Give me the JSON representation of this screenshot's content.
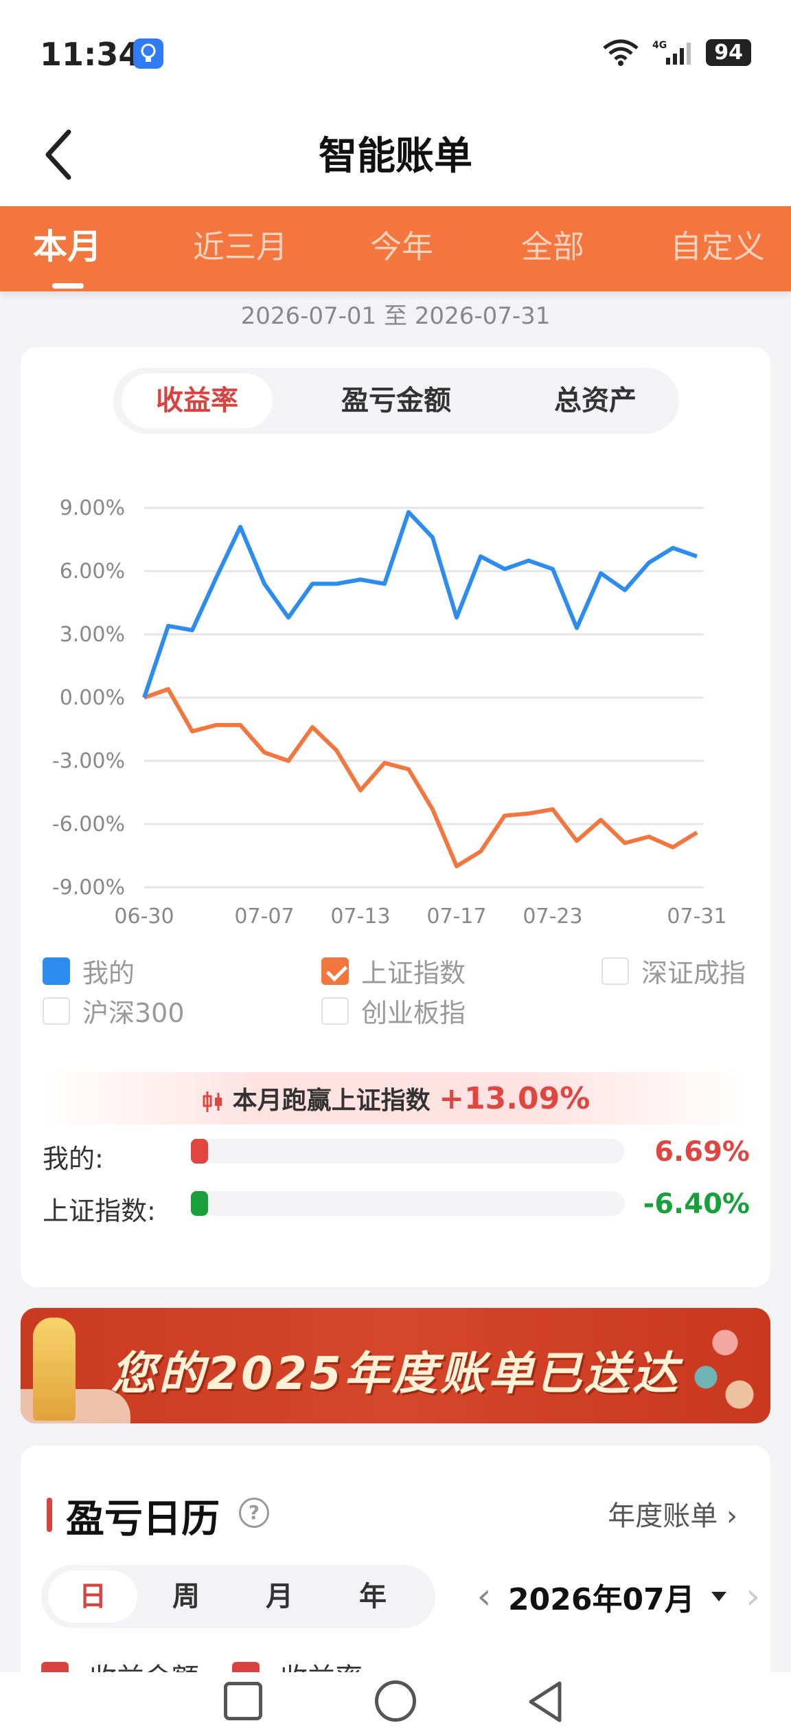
{
  "status": {
    "time": "11:34",
    "battery": "94",
    "network": "4G"
  },
  "header": {
    "title": "智能账单"
  },
  "tabs": [
    {
      "label": "本月",
      "active": true
    },
    {
      "label": "近三月",
      "active": false
    },
    {
      "label": "今年",
      "active": false
    },
    {
      "label": "全部",
      "active": false
    },
    {
      "label": "自定义",
      "active": false
    }
  ],
  "date_range": "2026-07-01 至 2026-07-31",
  "metric_tabs": [
    {
      "label": "收益率",
      "active": true
    },
    {
      "label": "盈亏金额",
      "active": false
    },
    {
      "label": "总资产",
      "active": false
    }
  ],
  "chart_data": {
    "type": "line",
    "x": [
      "06-30",
      "07-01",
      "07-02",
      "07-03",
      "07-06",
      "07-07",
      "07-08",
      "07-09",
      "07-10",
      "07-13",
      "07-14",
      "07-15",
      "07-16",
      "07-17",
      "07-20",
      "07-21",
      "07-22",
      "07-23",
      "07-24",
      "07-27",
      "07-28",
      "07-29",
      "07-30",
      "07-31"
    ],
    "x_tick_labels": [
      "06-30",
      "07-07",
      "07-13",
      "07-17",
      "07-23",
      "07-31"
    ],
    "y_tick_labels": [
      "9.00%",
      "6.00%",
      "3.00%",
      "0.00%",
      "-3.00%",
      "-6.00%",
      "-9.00%"
    ],
    "ylim": [
      -9,
      9
    ],
    "unit": "%",
    "grid": true,
    "series": [
      {
        "name": "我的",
        "color": "#2d8cf0",
        "values": [
          0.0,
          3.4,
          3.2,
          5.7,
          8.1,
          5.4,
          3.8,
          5.4,
          5.4,
          5.6,
          5.4,
          8.8,
          7.6,
          3.8,
          6.7,
          6.1,
          6.5,
          6.1,
          3.3,
          5.9,
          5.1,
          6.4,
          7.1,
          6.7
        ]
      },
      {
        "name": "上证指数",
        "color": "#f2763e",
        "values": [
          0.0,
          0.4,
          -1.6,
          -1.3,
          -1.3,
          -2.6,
          -3.0,
          -1.4,
          -2.5,
          -4.4,
          -3.1,
          -3.4,
          -5.3,
          -8.0,
          -7.3,
          -5.6,
          -5.5,
          -5.3,
          -6.8,
          -5.8,
          -6.9,
          -6.6,
          -7.1,
          -6.4
        ]
      }
    ]
  },
  "legend": [
    {
      "label": "我的",
      "state": "blue"
    },
    {
      "label": "上证指数",
      "state": "orange"
    },
    {
      "label": "深证成指",
      "state": "off"
    },
    {
      "label": "沪深300",
      "state": "off"
    },
    {
      "label": "创业板指",
      "state": "off"
    }
  ],
  "summary": {
    "prefix": "本月跑赢上证指数",
    "value": "+13.09%"
  },
  "comparison": [
    {
      "label": "我的:",
      "value": "6.69%",
      "fraction": 0.04,
      "color": "#e0463f"
    },
    {
      "label": "上证指数:",
      "value": "-6.40%",
      "fraction": 0.04,
      "color": "#18a03a"
    }
  ],
  "promo": {
    "text": "您的2025年度账单已送达"
  },
  "calendar": {
    "title": "盈亏日历",
    "help": "?",
    "annual_link": "年度账单",
    "granularity": [
      {
        "label": "日",
        "active": true
      },
      {
        "label": "周",
        "active": false
      },
      {
        "label": "月",
        "active": false
      },
      {
        "label": "年",
        "active": false
      }
    ],
    "month": "2026年07月",
    "peek_items": [
      "收益金额",
      "收益率"
    ]
  }
}
